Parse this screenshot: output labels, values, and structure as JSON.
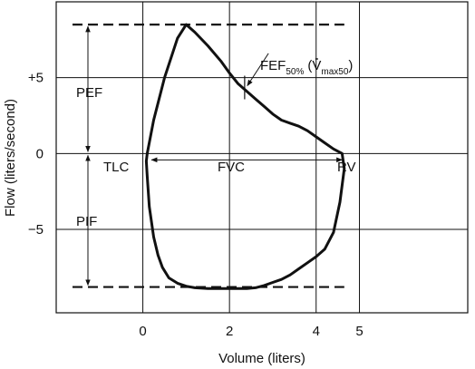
{
  "chart_data": {
    "type": "line",
    "title": "",
    "xlabel": "Volume (liters)",
    "ylabel": "Flow (liters/second)",
    "xlim": [
      -2,
      7.5
    ],
    "ylim": [
      -10.5,
      10
    ],
    "grid": true,
    "x_ticks": [
      {
        "value": 0,
        "label": "0"
      },
      {
        "value": 2,
        "label": "2"
      },
      {
        "value": 4,
        "label": "4"
      },
      {
        "value": 5,
        "label": "5"
      }
    ],
    "y_ticks": [
      {
        "value": 5,
        "label": "+5"
      },
      {
        "value": 0,
        "label": "0"
      },
      {
        "value": -5,
        "label": "−5"
      }
    ],
    "x_grid": [
      0,
      2,
      4,
      5
    ],
    "y_grid": [
      -5,
      0,
      5
    ],
    "series": [
      {
        "name": "",
        "x": [
          0.1,
          0.25,
          0.5,
          0.8,
          1.0,
          1.2,
          1.5,
          1.8,
          2.0,
          2.2,
          2.4,
          2.6,
          2.8,
          3.0,
          3.2,
          3.4,
          3.6,
          3.8,
          4.0,
          4.2,
          4.4,
          4.6,
          4.65,
          4.55,
          4.4,
          4.2,
          4.0,
          3.8,
          3.6,
          3.4,
          3.2,
          3.0,
          2.8,
          2.6,
          2.4,
          2.2,
          2.0,
          1.8,
          1.5,
          1.2,
          1.0,
          0.8,
          0.6,
          0.45,
          0.35,
          0.25,
          0.15,
          0.1,
          0.08,
          0.1
        ],
        "y": [
          0.0,
          2.2,
          5.0,
          7.6,
          8.5,
          8.0,
          7.1,
          6.1,
          5.3,
          4.6,
          4.1,
          3.6,
          3.1,
          2.6,
          2.2,
          2.0,
          1.8,
          1.5,
          1.1,
          0.7,
          0.3,
          0.0,
          -1.0,
          -3.2,
          -5.2,
          -6.3,
          -6.8,
          -7.2,
          -7.6,
          -8.0,
          -8.3,
          -8.5,
          -8.7,
          -8.85,
          -8.9,
          -8.9,
          -8.9,
          -8.9,
          -8.9,
          -8.85,
          -8.75,
          -8.55,
          -8.2,
          -7.5,
          -6.7,
          -5.5,
          -3.5,
          -1.5,
          -0.5,
          0.0
        ]
      }
    ],
    "reference_lines": [
      {
        "value": 8.5,
        "style": "dashed"
      },
      {
        "value": -8.8,
        "style": "dashed"
      }
    ],
    "annotations": {
      "pef": "PEF",
      "pif": "PIF",
      "tlc": "TLC",
      "rv": "RV",
      "fvc": "FVC",
      "fef_main": "FEF",
      "fef_sub": "50%",
      "vmax_open": "(",
      "vmax_v": "V",
      "vmax_sub": "max50",
      "vmax_close": ")"
    }
  }
}
